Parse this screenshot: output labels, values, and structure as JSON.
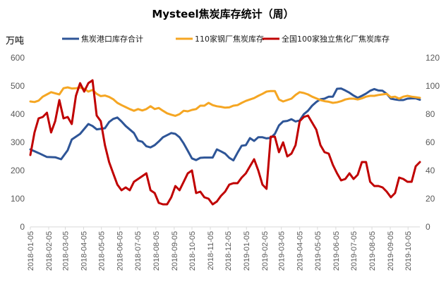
{
  "chart_data": {
    "type": "line",
    "title": "Mysteel焦炭库存统计（周）",
    "unit_label": "万吨",
    "legend_position": "top",
    "grid": false,
    "y_left": {
      "range": [
        0,
        600
      ],
      "ticks": [
        "0",
        "100",
        "200",
        "300",
        "400",
        "500",
        "600"
      ]
    },
    "y_right": {
      "range": [
        0,
        120
      ],
      "ticks": [
        "0",
        "20",
        "40",
        "60",
        "80",
        "100",
        "120"
      ]
    },
    "x_range": [
      "2018-01-05",
      "2019-10-25"
    ],
    "x_tick_labels": [
      "2018-01-05",
      "2018-02-05",
      "2018-03-05",
      "2018-04-05",
      "2018-05-05",
      "2018-06-05",
      "2018-07-05",
      "2018-08-05",
      "2018-09-05",
      "2018-10-05",
      "2018-11-05",
      "2018-12-05",
      "2019-01-05",
      "2019-02-05",
      "2019-03-05",
      "2019-04-05",
      "2019-05-05",
      "2019-06-05",
      "2019-07-05",
      "2019-08-05",
      "2019-09-05",
      "2019-10-05"
    ],
    "series": [
      {
        "name": "焦炭港口库存合计",
        "axis": "left",
        "color": "#2e5597",
        "points": [
          [
            "2018-01-05",
            275
          ],
          [
            "2018-01-19",
            262
          ],
          [
            "2018-02-02",
            248
          ],
          [
            "2018-02-16",
            247
          ],
          [
            "2018-02-26",
            240
          ],
          [
            "2018-03-09",
            272
          ],
          [
            "2018-03-16",
            310
          ],
          [
            "2018-03-30",
            330
          ],
          [
            "2018-04-13",
            365
          ],
          [
            "2018-04-20",
            358
          ],
          [
            "2018-04-27",
            346
          ],
          [
            "2018-05-11",
            350
          ],
          [
            "2018-05-18",
            372
          ],
          [
            "2018-05-25",
            383
          ],
          [
            "2018-06-01",
            388
          ],
          [
            "2018-06-08",
            374
          ],
          [
            "2018-06-15",
            358
          ],
          [
            "2018-06-29",
            333
          ],
          [
            "2018-07-06",
            306
          ],
          [
            "2018-07-13",
            302
          ],
          [
            "2018-07-20",
            286
          ],
          [
            "2018-07-27",
            282
          ],
          [
            "2018-08-03",
            290
          ],
          [
            "2018-08-10",
            303
          ],
          [
            "2018-08-17",
            318
          ],
          [
            "2018-08-31",
            333
          ],
          [
            "2018-09-07",
            330
          ],
          [
            "2018-09-14",
            318
          ],
          [
            "2018-09-21",
            296
          ],
          [
            "2018-09-28",
            270
          ],
          [
            "2018-10-05",
            243
          ],
          [
            "2018-10-12",
            237
          ],
          [
            "2018-10-19",
            245
          ],
          [
            "2018-10-26",
            246
          ],
          [
            "2018-11-02",
            246
          ],
          [
            "2018-11-09",
            246
          ],
          [
            "2018-11-16",
            275
          ],
          [
            "2018-11-23",
            268
          ],
          [
            "2018-11-30",
            260
          ],
          [
            "2018-12-07",
            245
          ],
          [
            "2018-12-14",
            236
          ],
          [
            "2018-12-21",
            263
          ],
          [
            "2018-12-28",
            288
          ],
          [
            "2019-01-04",
            290
          ],
          [
            "2019-01-11",
            315
          ],
          [
            "2019-01-18",
            305
          ],
          [
            "2019-01-25",
            318
          ],
          [
            "2019-02-01",
            318
          ],
          [
            "2019-02-08",
            314
          ],
          [
            "2019-02-15",
            316
          ],
          [
            "2019-02-22",
            330
          ],
          [
            "2019-03-01",
            360
          ],
          [
            "2019-03-08",
            374
          ],
          [
            "2019-03-15",
            376
          ],
          [
            "2019-03-22",
            382
          ],
          [
            "2019-03-29",
            374
          ],
          [
            "2019-04-05",
            378
          ],
          [
            "2019-04-12",
            400
          ],
          [
            "2019-04-19",
            412
          ],
          [
            "2019-04-26",
            430
          ],
          [
            "2019-05-03",
            443
          ],
          [
            "2019-05-10",
            453
          ],
          [
            "2019-05-17",
            455
          ],
          [
            "2019-05-24",
            462
          ],
          [
            "2019-05-31",
            462
          ],
          [
            "2019-06-07",
            490
          ],
          [
            "2019-06-14",
            491
          ],
          [
            "2019-06-21",
            484
          ],
          [
            "2019-06-28",
            476
          ],
          [
            "2019-07-05",
            466
          ],
          [
            "2019-07-12",
            458
          ],
          [
            "2019-07-19",
            465
          ],
          [
            "2019-07-26",
            473
          ],
          [
            "2019-08-02",
            483
          ],
          [
            "2019-08-09",
            489
          ],
          [
            "2019-08-16",
            484
          ],
          [
            "2019-08-23",
            483
          ],
          [
            "2019-08-30",
            472
          ],
          [
            "2019-09-06",
            455
          ],
          [
            "2019-09-13",
            452
          ],
          [
            "2019-09-20",
            450
          ],
          [
            "2019-09-27",
            450
          ],
          [
            "2019-10-04",
            455
          ],
          [
            "2019-10-11",
            456
          ],
          [
            "2019-10-18",
            456
          ],
          [
            "2019-10-25",
            451
          ]
        ]
      },
      {
        "name": "110家钢厂焦炭库存",
        "axis": "left",
        "color": "#f5a623",
        "points": [
          [
            "2018-01-05",
            445
          ],
          [
            "2018-01-12",
            443
          ],
          [
            "2018-01-19",
            448
          ],
          [
            "2018-01-26",
            462
          ],
          [
            "2018-02-02",
            470
          ],
          [
            "2018-02-09",
            478
          ],
          [
            "2018-02-16",
            474
          ],
          [
            "2018-02-23",
            470
          ],
          [
            "2018-03-02",
            492
          ],
          [
            "2018-03-09",
            495
          ],
          [
            "2018-03-16",
            491
          ],
          [
            "2018-03-23",
            492
          ],
          [
            "2018-03-30",
            494
          ],
          [
            "2018-04-06",
            490
          ],
          [
            "2018-04-13",
            480
          ],
          [
            "2018-04-20",
            486
          ],
          [
            "2018-04-27",
            472
          ],
          [
            "2018-05-04",
            464
          ],
          [
            "2018-05-11",
            466
          ],
          [
            "2018-05-18",
            461
          ],
          [
            "2018-05-25",
            453
          ],
          [
            "2018-06-01",
            440
          ],
          [
            "2018-06-08",
            432
          ],
          [
            "2018-06-15",
            425
          ],
          [
            "2018-06-22",
            418
          ],
          [
            "2018-06-29",
            412
          ],
          [
            "2018-07-06",
            418
          ],
          [
            "2018-07-13",
            413
          ],
          [
            "2018-07-20",
            418
          ],
          [
            "2018-07-27",
            428
          ],
          [
            "2018-08-03",
            418
          ],
          [
            "2018-08-10",
            422
          ],
          [
            "2018-08-17",
            412
          ],
          [
            "2018-08-24",
            403
          ],
          [
            "2018-08-31",
            398
          ],
          [
            "2018-09-07",
            394
          ],
          [
            "2018-09-14",
            400
          ],
          [
            "2018-09-21",
            412
          ],
          [
            "2018-09-28",
            410
          ],
          [
            "2018-10-05",
            415
          ],
          [
            "2018-10-12",
            418
          ],
          [
            "2018-10-19",
            430
          ],
          [
            "2018-10-26",
            430
          ],
          [
            "2018-11-02",
            440
          ],
          [
            "2018-11-09",
            432
          ],
          [
            "2018-11-16",
            428
          ],
          [
            "2018-11-23",
            426
          ],
          [
            "2018-11-30",
            423
          ],
          [
            "2018-12-07",
            424
          ],
          [
            "2018-12-14",
            430
          ],
          [
            "2018-12-21",
            432
          ],
          [
            "2018-12-28",
            440
          ],
          [
            "2019-01-04",
            447
          ],
          [
            "2019-01-11",
            452
          ],
          [
            "2019-01-18",
            457
          ],
          [
            "2019-01-25",
            465
          ],
          [
            "2019-02-01",
            472
          ],
          [
            "2019-02-08",
            480
          ],
          [
            "2019-02-15",
            482
          ],
          [
            "2019-02-22",
            482
          ],
          [
            "2019-03-01",
            452
          ],
          [
            "2019-03-08",
            445
          ],
          [
            "2019-03-15",
            450
          ],
          [
            "2019-03-22",
            455
          ],
          [
            "2019-03-29",
            468
          ],
          [
            "2019-04-05",
            478
          ],
          [
            "2019-04-12",
            475
          ],
          [
            "2019-04-19",
            470
          ],
          [
            "2019-04-26",
            462
          ],
          [
            "2019-05-03",
            456
          ],
          [
            "2019-05-10",
            450
          ],
          [
            "2019-05-17",
            446
          ],
          [
            "2019-05-24",
            444
          ],
          [
            "2019-05-31",
            440
          ],
          [
            "2019-06-07",
            442
          ],
          [
            "2019-06-14",
            446
          ],
          [
            "2019-06-21",
            452
          ],
          [
            "2019-06-28",
            455
          ],
          [
            "2019-07-05",
            455
          ],
          [
            "2019-07-12",
            452
          ],
          [
            "2019-07-19",
            456
          ],
          [
            "2019-07-26",
            462
          ],
          [
            "2019-08-02",
            465
          ],
          [
            "2019-08-09",
            465
          ],
          [
            "2019-08-16",
            468
          ],
          [
            "2019-08-23",
            470
          ],
          [
            "2019-08-30",
            472
          ],
          [
            "2019-09-06",
            460
          ],
          [
            "2019-09-13",
            462
          ],
          [
            "2019-09-20",
            455
          ],
          [
            "2019-09-27",
            462
          ],
          [
            "2019-10-04",
            465
          ],
          [
            "2019-10-11",
            462
          ],
          [
            "2019-10-18",
            460
          ],
          [
            "2019-10-25",
            458
          ]
        ]
      },
      {
        "name": "全国100家独立焦化厂焦炭库存",
        "axis": "right",
        "color": "#c00000",
        "points": [
          [
            "2018-01-05",
            51
          ],
          [
            "2018-01-12",
            67
          ],
          [
            "2018-01-19",
            77
          ],
          [
            "2018-01-26",
            78
          ],
          [
            "2018-02-02",
            81
          ],
          [
            "2018-02-09",
            67
          ],
          [
            "2018-02-16",
            75
          ],
          [
            "2018-02-23",
            90
          ],
          [
            "2018-03-02",
            77
          ],
          [
            "2018-03-09",
            78
          ],
          [
            "2018-03-16",
            73
          ],
          [
            "2018-03-23",
            93
          ],
          [
            "2018-03-30",
            102
          ],
          [
            "2018-04-06",
            96
          ],
          [
            "2018-04-13",
            102
          ],
          [
            "2018-04-20",
            104
          ],
          [
            "2018-04-27",
            79
          ],
          [
            "2018-05-04",
            75
          ],
          [
            "2018-05-11",
            58
          ],
          [
            "2018-05-18",
            46
          ],
          [
            "2018-05-25",
            38
          ],
          [
            "2018-06-01",
            30
          ],
          [
            "2018-06-08",
            26
          ],
          [
            "2018-06-15",
            28
          ],
          [
            "2018-06-22",
            26
          ],
          [
            "2018-06-29",
            32
          ],
          [
            "2018-07-06",
            34
          ],
          [
            "2018-07-13",
            36
          ],
          [
            "2018-07-20",
            38
          ],
          [
            "2018-07-27",
            26
          ],
          [
            "2018-08-03",
            24
          ],
          [
            "2018-08-10",
            17
          ],
          [
            "2018-08-17",
            16
          ],
          [
            "2018-08-24",
            16
          ],
          [
            "2018-08-31",
            21
          ],
          [
            "2018-09-07",
            29
          ],
          [
            "2018-09-14",
            26
          ],
          [
            "2018-09-21",
            32
          ],
          [
            "2018-09-28",
            38
          ],
          [
            "2018-10-05",
            40
          ],
          [
            "2018-10-12",
            24
          ],
          [
            "2018-10-19",
            25
          ],
          [
            "2018-10-26",
            21
          ],
          [
            "2018-11-02",
            20
          ],
          [
            "2018-11-09",
            16
          ],
          [
            "2018-11-16",
            18
          ],
          [
            "2018-11-23",
            22
          ],
          [
            "2018-11-30",
            25
          ],
          [
            "2018-12-07",
            30
          ],
          [
            "2018-12-14",
            31
          ],
          [
            "2018-12-21",
            31
          ],
          [
            "2018-12-28",
            35
          ],
          [
            "2019-01-04",
            38
          ],
          [
            "2019-01-11",
            43
          ],
          [
            "2019-01-18",
            48
          ],
          [
            "2019-01-25",
            40
          ],
          [
            "2019-02-01",
            30
          ],
          [
            "2019-02-08",
            27
          ],
          [
            "2019-02-15",
            64
          ],
          [
            "2019-02-22",
            64
          ],
          [
            "2019-03-01",
            53
          ],
          [
            "2019-03-08",
            60
          ],
          [
            "2019-03-15",
            50
          ],
          [
            "2019-03-22",
            52
          ],
          [
            "2019-03-29",
            58
          ],
          [
            "2019-04-05",
            75
          ],
          [
            "2019-04-12",
            78
          ],
          [
            "2019-04-19",
            79
          ],
          [
            "2019-04-26",
            74
          ],
          [
            "2019-05-03",
            69
          ],
          [
            "2019-05-10",
            58
          ],
          [
            "2019-05-17",
            53
          ],
          [
            "2019-05-24",
            52
          ],
          [
            "2019-05-31",
            44
          ],
          [
            "2019-06-07",
            38
          ],
          [
            "2019-06-14",
            33
          ],
          [
            "2019-06-21",
            34
          ],
          [
            "2019-06-28",
            38
          ],
          [
            "2019-07-05",
            34
          ],
          [
            "2019-07-12",
            37
          ],
          [
            "2019-07-19",
            46
          ],
          [
            "2019-07-26",
            46
          ],
          [
            "2019-08-02",
            32
          ],
          [
            "2019-08-09",
            29
          ],
          [
            "2019-08-16",
            29
          ],
          [
            "2019-08-23",
            28
          ],
          [
            "2019-08-30",
            25
          ],
          [
            "2019-09-06",
            21
          ],
          [
            "2019-09-13",
            24
          ],
          [
            "2019-09-20",
            35
          ],
          [
            "2019-09-27",
            34
          ],
          [
            "2019-10-04",
            32
          ],
          [
            "2019-10-11",
            32
          ],
          [
            "2019-10-18",
            43
          ],
          [
            "2019-10-25",
            46
          ]
        ]
      }
    ]
  }
}
